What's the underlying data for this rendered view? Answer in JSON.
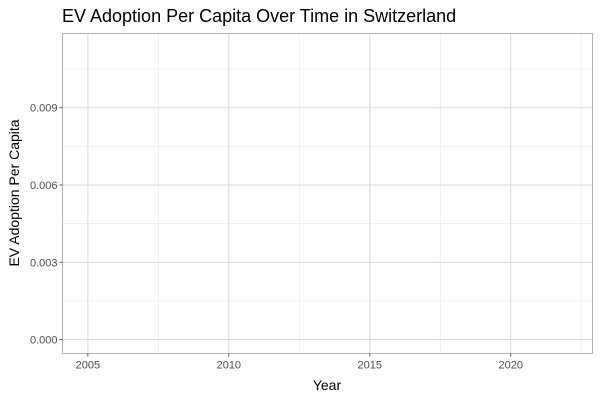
{
  "chart_data": {
    "type": "line",
    "title": "EV Adoption Per Capita Over Time in Switzerland",
    "xlabel": "Year",
    "ylabel": "EV Adoption Per Capita",
    "xlim": [
      2004.1,
      2022.9
    ],
    "ylim": [
      -0.00054,
      0.01188
    ],
    "x_ticks": [
      2005,
      2010,
      2015,
      2020
    ],
    "x_tick_labels": [
      "2005",
      "2010",
      "2015",
      "2020"
    ],
    "x_minor_ticks": [
      2007.5,
      2012.5,
      2017.5,
      2022.5
    ],
    "y_ticks": [
      0.0,
      0.003,
      0.006,
      0.009
    ],
    "y_tick_labels": [
      "0.000",
      "0.003",
      "0.006",
      "0.009"
    ],
    "y_minor_ticks": [
      0.0015,
      0.0045,
      0.0075,
      0.0105
    ],
    "grid": true,
    "legend": "none",
    "series": []
  }
}
